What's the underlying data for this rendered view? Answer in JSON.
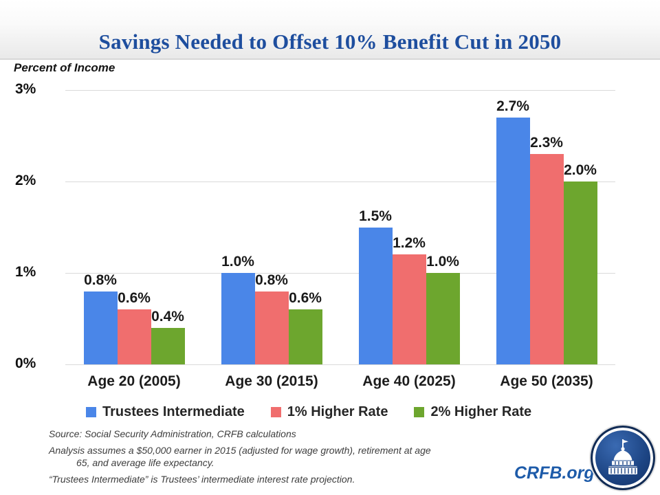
{
  "page": {
    "title": "Savings Needed to Offset 10% Benefit Cut in 2050",
    "brand": "CRFB.org",
    "logo_icon": "capitol-building-icon"
  },
  "chart_data": {
    "type": "bar",
    "title": "Savings Needed to Offset 10% Benefit Cut in 2050",
    "ylabel": "Percent of Income",
    "xlabel": "",
    "ylim": [
      0,
      3
    ],
    "grid": true,
    "legend_position": "bottom",
    "categories": [
      "Age 20 (2005)",
      "Age 30 (2015)",
      "Age 40 (2025)",
      "Age 50 (2035)"
    ],
    "yticks": [
      {
        "value": 3,
        "label": "3%"
      },
      {
        "value": 2,
        "label": "2%"
      },
      {
        "value": 1,
        "label": "1%"
      },
      {
        "value": 0,
        "label": "0%"
      }
    ],
    "series": [
      {
        "name": "Trustees Intermediate",
        "color": "#4a86e8",
        "values": [
          0.8,
          1.0,
          1.5,
          2.7
        ],
        "labels": [
          "0.8%",
          "1.0%",
          "1.5%",
          "2.7%"
        ]
      },
      {
        "name": "1% Higher Rate",
        "color": "#f06e6e",
        "values": [
          0.6,
          0.8,
          1.2,
          2.3
        ],
        "labels": [
          "0.6%",
          "0.8%",
          "1.2%",
          "2.3%"
        ]
      },
      {
        "name": "2% Higher Rate",
        "color": "#6da62e",
        "values": [
          0.4,
          0.6,
          1.0,
          2.0
        ],
        "labels": [
          "0.4%",
          "0.6%",
          "1.0%",
          "2.0%"
        ]
      }
    ]
  },
  "footer": {
    "notes": [
      "Source: Social Security Administration, CRFB calculations",
      "Analysis assumes a $50,000 earner in 2015 (adjusted for wage growth), retirement at age 65, and average life expectancy.",
      "“Trustees Intermediate” is Trustees’ intermediate interest rate projection."
    ]
  }
}
